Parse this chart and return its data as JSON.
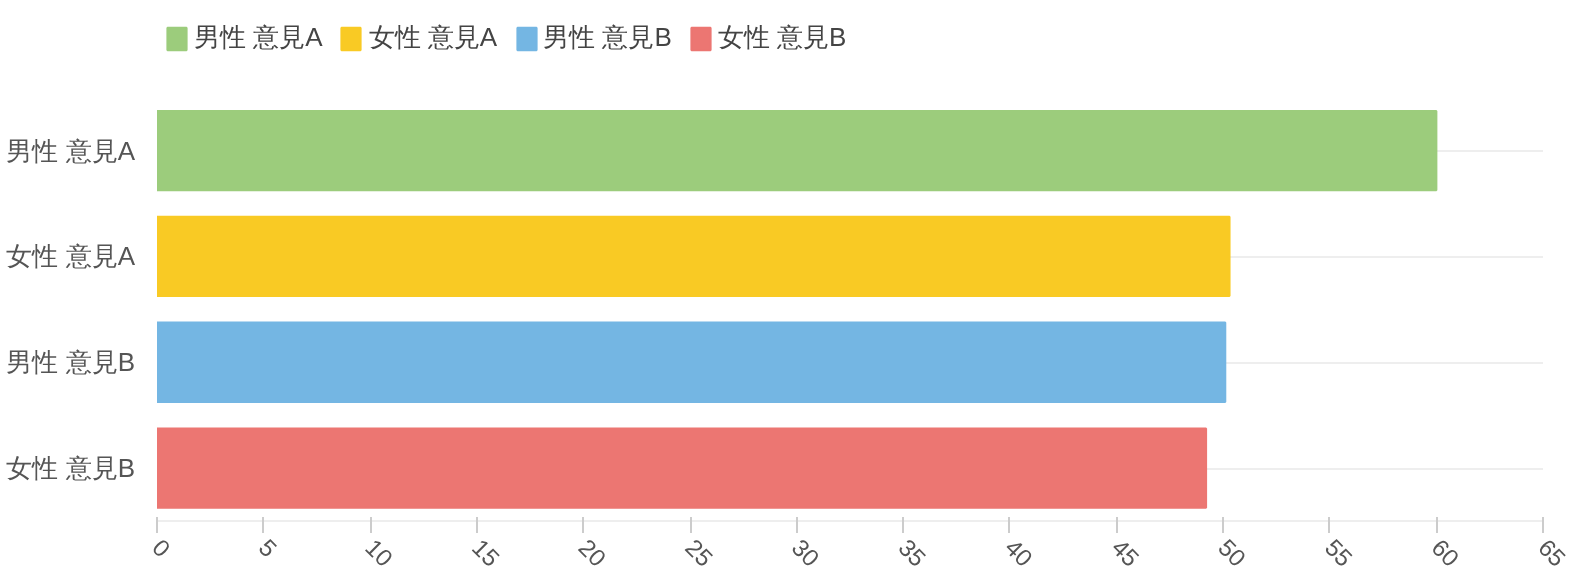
{
  "chart_data": {
    "type": "bar",
    "orientation": "horizontal",
    "categories": [
      "男性 意見A",
      "女性 意見A",
      "男性 意見B",
      "女性 意見B"
    ],
    "series": [
      {
        "name": "男性 意見A",
        "color": "#9ccc7c",
        "values": [
          60,
          null,
          null,
          null
        ]
      },
      {
        "name": "女性 意見A",
        "color": "#f9ca24",
        "values": [
          null,
          50.3,
          null,
          null
        ]
      },
      {
        "name": "男性 意見B",
        "color": "#74b6e3",
        "values": [
          null,
          null,
          50.1,
          null
        ]
      },
      {
        "name": "女性 意見B",
        "color": "#ec7672",
        "values": [
          null,
          null,
          null,
          49.2
        ]
      }
    ],
    "xlim": [
      0,
      65
    ],
    "xticks": [
      0,
      5,
      10,
      15,
      20,
      25,
      30,
      35,
      40,
      45,
      50,
      55,
      60,
      65
    ],
    "grid": "y",
    "legend": "top left"
  }
}
